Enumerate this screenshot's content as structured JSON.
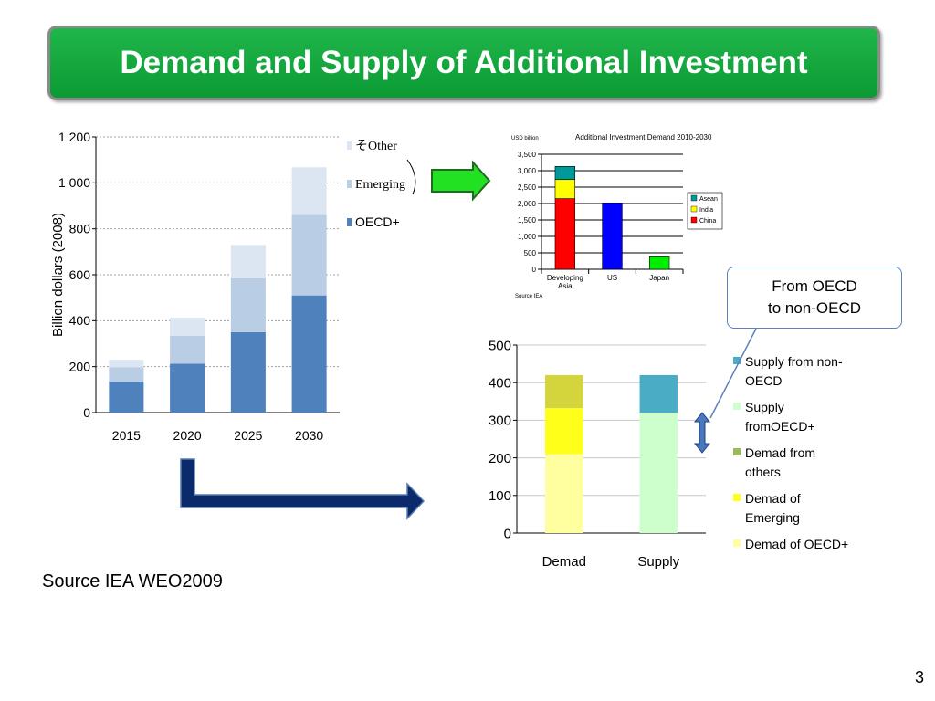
{
  "slide": {
    "title": "Demand and Supply of Additional Investment",
    "source_note": "Source IEA WEO2009",
    "page_number": "3",
    "callout": {
      "line1": "From OECD",
      "line2": "to non-OECD"
    },
    "colors": {
      "banner": "#10a43b",
      "arrow_green": "#22e022",
      "arrow_navy": "#0b2a6b",
      "double_arrow": "#4a78c0"
    }
  },
  "chart_data": [
    {
      "type": "bar",
      "stacked": true,
      "title": "",
      "ylabel": "Billion dollars (2008)",
      "xlabel": "",
      "categories": [
        "2015",
        "2020",
        "2025",
        "2030"
      ],
      "y_ticks": [
        "0",
        "200",
        "400",
        "600",
        "800",
        "1 000",
        "1 200"
      ],
      "ylim": [
        0,
        1200
      ],
      "series": [
        {
          "name": "OECD+",
          "color": "#4f81bd",
          "values": [
            135,
            213,
            350,
            510
          ]
        },
        {
          "name": "Emerging",
          "color": "#b9cde5",
          "values": [
            62,
            122,
            235,
            350
          ]
        },
        {
          "name": "そOther",
          "color": "#dce6f2",
          "values": [
            33,
            78,
            145,
            208
          ]
        }
      ],
      "legend": [
        {
          "label": "そOther",
          "color": "#dce6f2"
        },
        {
          "label": "Emerging",
          "color": "#b9cde5"
        },
        {
          "label": "OECD+",
          "color": "#4f81bd"
        }
      ],
      "legend_position": "right",
      "grid": true
    },
    {
      "type": "bar",
      "stacked": true,
      "title": "Additional Investment Demand  2010-2030",
      "unit_label": "USD billion",
      "source": "Source IEA",
      "categories": [
        "Developing Asia",
        "US",
        "Japan"
      ],
      "category_lines": [
        [
          "Developing",
          "Asia"
        ],
        [
          "US"
        ],
        [
          "Japan"
        ]
      ],
      "y_ticks": [
        "0",
        "500",
        "1,000",
        "1,500",
        "2,000",
        "2,500",
        "3,000",
        "3,500"
      ],
      "ylim": [
        0,
        3500
      ],
      "series": [
        {
          "name": "China",
          "color": "#ff0000",
          "values": [
            2150,
            0,
            0
          ]
        },
        {
          "name": "India",
          "color": "#ffff00",
          "values": [
            580,
            0,
            0
          ]
        },
        {
          "name": "Asean",
          "color": "#009999",
          "values": [
            400,
            0,
            0
          ]
        },
        {
          "name": "US",
          "color": "#0000ff",
          "values": [
            0,
            2020,
            0
          ]
        },
        {
          "name": "Japan",
          "color": "#00ee00",
          "values": [
            0,
            0,
            380
          ]
        }
      ],
      "legend": [
        {
          "label": "Asean",
          "color": "#009999"
        },
        {
          "label": "India",
          "color": "#ffff00"
        },
        {
          "label": "China",
          "color": "#ff0000"
        }
      ],
      "legend_position": "right",
      "grid": true
    },
    {
      "type": "bar",
      "stacked": true,
      "title": "",
      "xlabel": "",
      "ylabel": "",
      "categories": [
        "Demad",
        "Supply"
      ],
      "y_ticks": [
        "0",
        "100",
        "200",
        "300",
        "400",
        "500"
      ],
      "ylim": [
        0,
        500
      ],
      "series": [
        {
          "name": "Demad of OECD+",
          "color": "#ffffa0",
          "values": [
            210,
            0
          ]
        },
        {
          "name": "Demad of Emerging",
          "color": "#ffff1a",
          "values": [
            122,
            0
          ]
        },
        {
          "name": "Demad from others",
          "color": "#d4d43c",
          "values": [
            88,
            0
          ]
        },
        {
          "name": "Supply fromOECD+",
          "color": "#ccffcc",
          "values": [
            0,
            320
          ]
        },
        {
          "name": "Supply from non-OECD",
          "color": "#4bacc6",
          "values": [
            0,
            100
          ]
        }
      ],
      "legend": [
        {
          "lines": [
            "Supply from non-",
            "OECD"
          ],
          "color": "#4bacc6"
        },
        {
          "lines": [
            "Supply",
            "fromOECD+"
          ],
          "color": "#ccffcc"
        },
        {
          "lines": [
            "Demad from",
            "others"
          ],
          "color": "#9bbb59"
        },
        {
          "lines": [
            "Demad of",
            "Emerging"
          ],
          "color": "#ffff1a"
        },
        {
          "lines": [
            "Demad of OECD+"
          ],
          "color": "#ffffa0"
        }
      ],
      "legend_position": "right",
      "grid": true
    }
  ]
}
